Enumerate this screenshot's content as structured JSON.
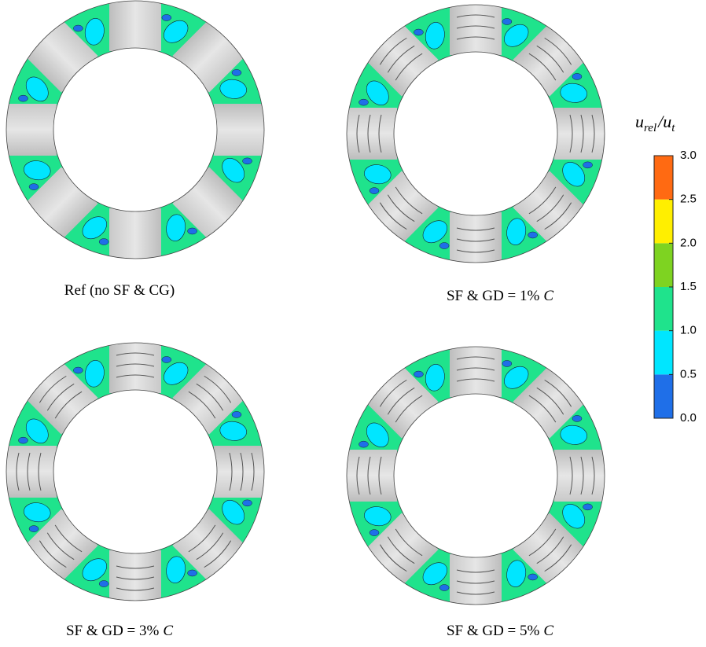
{
  "panels": [
    {
      "caption": {
        "text": "Ref (no SF & CG)"
      }
    },
    {
      "caption": {
        "text": "SF & GD = 1%",
        "symbol": "C"
      }
    },
    {
      "caption": {
        "text": "SF & GD = 3%",
        "symbol": "C"
      }
    },
    {
      "caption": {
        "text": "SF & GD = 5%",
        "symbol": "C"
      }
    }
  ],
  "colorbar": {
    "label": {
      "base": "u",
      "sub": "rel",
      "sep": "/",
      "base2": "u",
      "sub2": "t"
    },
    "ticks": [
      {
        "value": 0,
        "label": "0.0"
      },
      {
        "value": 0.5,
        "label": "0.5"
      },
      {
        "value": 1,
        "label": "1.0"
      },
      {
        "value": 1.5,
        "label": "1.5"
      },
      {
        "value": 2,
        "label": "2.0"
      },
      {
        "value": 2.5,
        "label": "2.5"
      },
      {
        "value": 3,
        "label": "3.0"
      }
    ],
    "colors": [
      "#1f6fe8",
      "#00e6ff",
      "#1fe38c",
      "#7ed321",
      "#ffef00",
      "#ff6a12"
    ]
  }
}
